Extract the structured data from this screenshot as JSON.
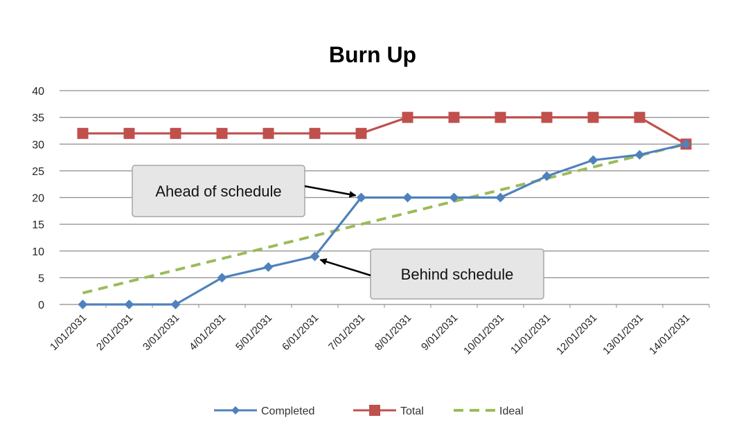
{
  "chart_data": {
    "type": "line",
    "title": "Burn Up",
    "xlabel": "",
    "ylabel": "",
    "ylim": [
      0,
      40
    ],
    "yticks": [
      "0",
      "5",
      "10",
      "15",
      "20",
      "25",
      "30",
      "35",
      "40"
    ],
    "categories": [
      "1/01/2031",
      "2/01/2031",
      "3/01/2031",
      "4/01/2031",
      "5/01/2031",
      "6/01/2031",
      "7/01/2031",
      "8/01/2031",
      "9/01/2031",
      "10/01/2031",
      "11/01/2031",
      "12/01/2031",
      "13/01/2031",
      "14/01/2031"
    ],
    "grid": true,
    "legend_position": "bottom",
    "series": [
      {
        "name": "Completed",
        "color": "#4F81BD",
        "marker": "diamond",
        "style": "solid",
        "values": [
          0,
          0,
          0,
          5,
          7,
          9,
          20,
          20,
          20,
          20,
          24,
          27,
          28,
          30
        ]
      },
      {
        "name": "Total",
        "color": "#C0504D",
        "marker": "square",
        "style": "solid",
        "values": [
          32,
          32,
          32,
          32,
          32,
          32,
          32,
          35,
          35,
          35,
          35,
          35,
          35,
          30
        ]
      },
      {
        "name": "Ideal",
        "color": "#9BBB59",
        "marker": "none",
        "style": "dashed",
        "values": [
          2.14,
          4.29,
          6.43,
          8.57,
          10.71,
          12.86,
          15,
          17.14,
          19.29,
          21.43,
          23.57,
          25.71,
          27.86,
          30
        ]
      }
    ],
    "annotations": [
      {
        "text": "Ahead of schedule",
        "target_category": "7/01/2031",
        "target_value": 20
      },
      {
        "text": "Behind schedule",
        "target_category": "6/01/2031",
        "target_value": 9
      }
    ]
  }
}
